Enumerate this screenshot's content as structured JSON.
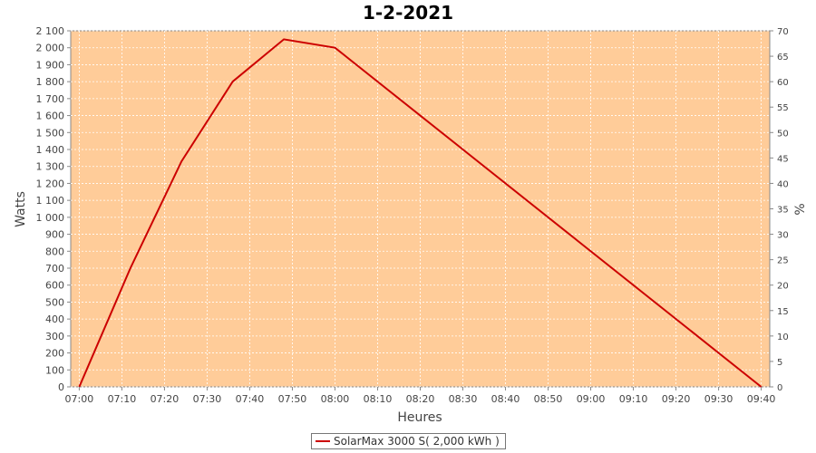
{
  "chart_data": {
    "type": "line",
    "title": "1-2-2021",
    "xlabel": "Heures",
    "ylabel": "Watts",
    "y2label": "%",
    "x_ticks": [
      "07:00",
      "07:10",
      "07:20",
      "07:30",
      "07:40",
      "07:50",
      "08:00",
      "08:10",
      "08:20",
      "08:30",
      "08:40",
      "08:50",
      "09:00",
      "09:10",
      "09:20",
      "09:30",
      "09:40"
    ],
    "y_ticks": [
      "0",
      "100",
      "200",
      "300",
      "400",
      "500",
      "600",
      "700",
      "800",
      "900",
      "1 000",
      "1 100",
      "1 200",
      "1 300",
      "1 400",
      "1 500",
      "1 600",
      "1 700",
      "1 800",
      "1 900",
      "2 000",
      "2 100"
    ],
    "y2_ticks": [
      "0",
      "5",
      "10",
      "15",
      "20",
      "25",
      "30",
      "35",
      "40",
      "45",
      "50",
      "55",
      "60",
      "65",
      "70"
    ],
    "xlim": [
      "06:58",
      "09:42"
    ],
    "ylim": [
      0,
      2100
    ],
    "y2lim": [
      0,
      70
    ],
    "grid": true,
    "plot_background": "#ffcc99",
    "series": [
      {
        "name": "SolarMax 3000 S( 2,000 kWh )",
        "color": "#cc0000",
        "x": [
          "07:00",
          "07:12",
          "07:24",
          "07:36",
          "07:48",
          "08:00",
          "09:40"
        ],
        "y": [
          0,
          700,
          1330,
          1800,
          2050,
          2000,
          0
        ]
      }
    ],
    "legend": {
      "position": "bottom-center",
      "label": "SolarMax 3000 S( 2,000 kWh )"
    }
  }
}
